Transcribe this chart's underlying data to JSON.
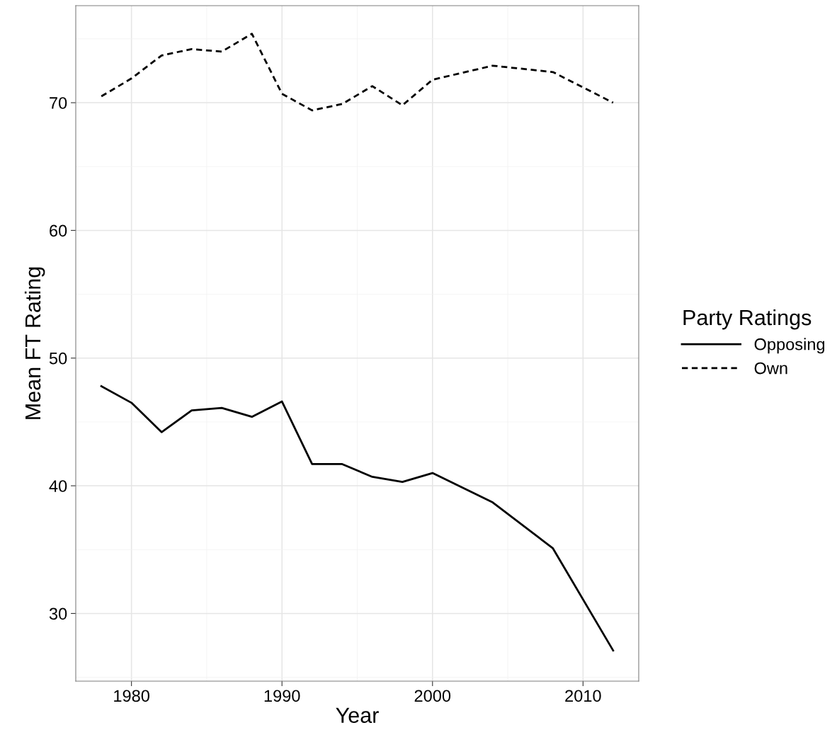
{
  "chart_data": {
    "type": "line",
    "xlabel": "Year",
    "ylabel": "Mean FT Rating",
    "legend_title": "Party Ratings",
    "legend": "right",
    "grid": true,
    "xlim": [
      1976.3,
      2013.7
    ],
    "ylim": [
      24.7,
      77.6
    ],
    "xticks": [
      1980,
      1990,
      2000,
      2010
    ],
    "yticks": [
      30,
      40,
      50,
      60,
      70
    ],
    "series": [
      {
        "name": "Opposing",
        "color": "#000000",
        "line_style": "solid",
        "x": [
          1978,
          1980,
          1982,
          1984,
          1986,
          1988,
          1990,
          1992,
          1994,
          1996,
          1998,
          2000,
          2004,
          2008,
          2012
        ],
        "values": [
          47.8,
          46.5,
          44.2,
          45.9,
          46.1,
          45.4,
          46.6,
          41.7,
          41.7,
          40.7,
          40.3,
          41.0,
          38.7,
          35.1,
          27.1
        ]
      },
      {
        "name": "Own",
        "color": "#000000",
        "line_style": "dashed",
        "x": [
          1978,
          1980,
          1982,
          1984,
          1986,
          1988,
          1990,
          1992,
          1994,
          1996,
          1998,
          2000,
          2004,
          2008,
          2012
        ],
        "values": [
          70.5,
          71.9,
          73.7,
          74.2,
          74.0,
          75.4,
          70.7,
          69.4,
          69.9,
          71.3,
          69.8,
          71.8,
          72.9,
          72.4,
          70.0
        ]
      }
    ]
  }
}
